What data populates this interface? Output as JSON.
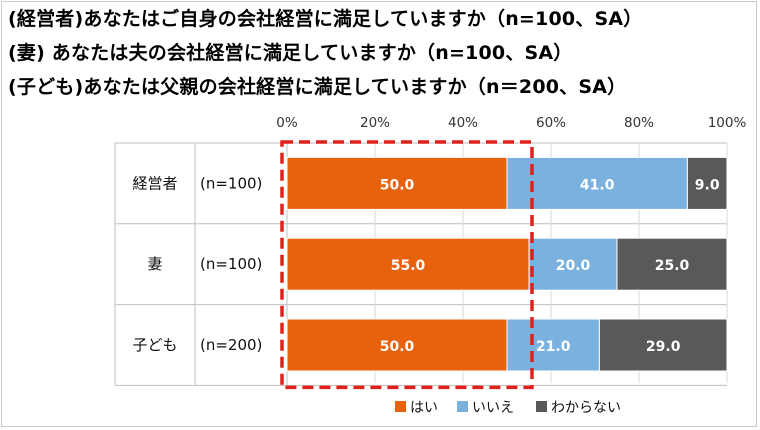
{
  "titles": [
    "(経営者)あなたはご自身の会社経営に満足していますか（n=100、SA）",
    "(妻) あなたは夫の会社経営に満足していますか（n=100、SA）",
    "(子ども)あなたは父親の会社経営に満足していますか（n＝200、SA）"
  ],
  "colors": {
    "hai": "#e8620e",
    "iie": "#7bb1df",
    "wakaranai": "#595959",
    "highlight": "#e0201b"
  },
  "chart_data": {
    "type": "bar",
    "orientation": "horizontal-stacked-100",
    "categories": [
      "経営者",
      "妻",
      "子ども"
    ],
    "sample_labels": [
      "(n=100)",
      "(n=100)",
      "(n=200)"
    ],
    "xlim": [
      0,
      100
    ],
    "x_ticks": [
      "0%",
      "20%",
      "40%",
      "60%",
      "80%",
      "100%"
    ],
    "series": [
      {
        "name": "はい",
        "values": [
          50.0,
          55.0,
          50.0
        ],
        "labels": [
          "50.0",
          "55.0",
          "50.0"
        ]
      },
      {
        "name": "いいえ",
        "values": [
          41.0,
          20.0,
          21.0
        ],
        "labels": [
          "41.0",
          "20.0",
          "21.0"
        ]
      },
      {
        "name": "わからない",
        "values": [
          9.0,
          25.0,
          29.0
        ],
        "labels": [
          "9.0",
          "25.0",
          "29.0"
        ]
      }
    ],
    "legend_position": "bottom",
    "highlight": "dashed-red-box-around-はい"
  }
}
